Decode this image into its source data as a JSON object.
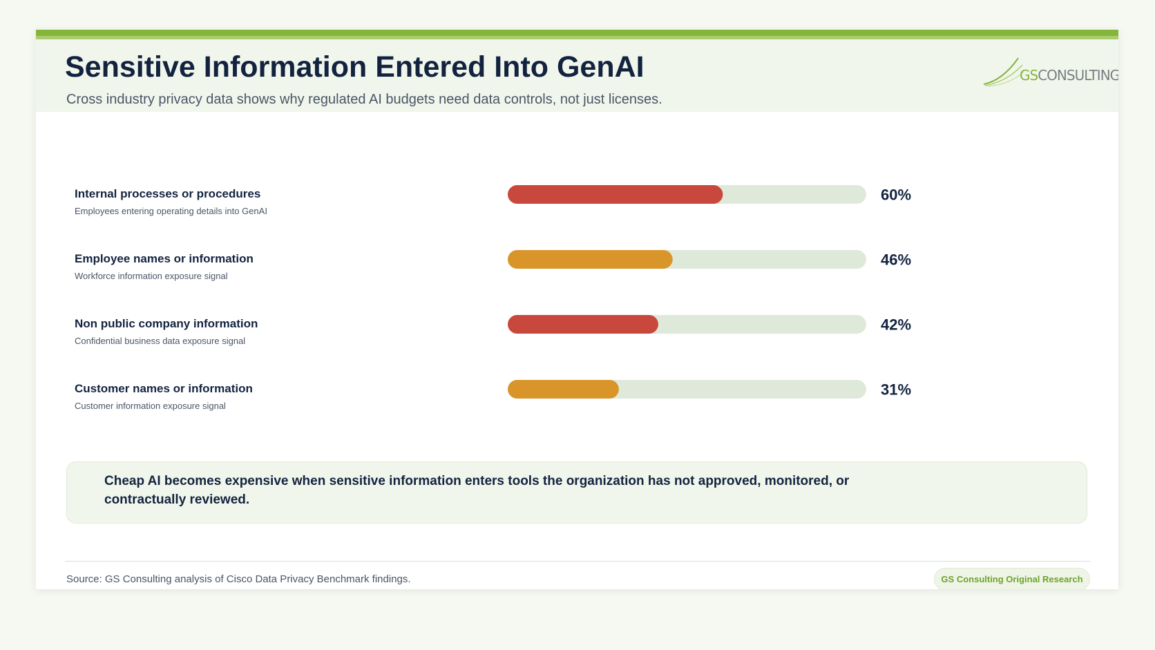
{
  "chart_data": {
    "type": "hbar",
    "title": "Sensitive Information Entered Into GenAI",
    "subtitle": "Cross industry privacy data shows why regulated AI budgets need data controls, not just licenses.",
    "categories": [
      "Internal processes or procedures",
      "Employee names or information",
      "Non public company information",
      "Customer names or information"
    ],
    "descriptions": [
      "Employees entering operating details into GenAI",
      "Workforce information exposure signal",
      "Confidential business data exposure signal",
      "Customer information exposure signal"
    ],
    "values": [
      60,
      46,
      42,
      31
    ],
    "value_labels": [
      "60%",
      "46%",
      "42%",
      "31%"
    ],
    "colors": [
      "#c9483e",
      "#d9952a",
      "#c9483e",
      "#d9952a"
    ],
    "xlim": [
      0,
      100
    ]
  },
  "logo": {
    "accent": "GS",
    "text": "CONSULTING"
  },
  "callout": "Cheap AI becomes expensive when sensitive information enters tools the organization has not approved, monitored, or contractually reviewed.",
  "source": "Source: GS Consulting analysis of Cisco Data Privacy Benchmark findings.",
  "badge": "GS Consulting Original Research"
}
